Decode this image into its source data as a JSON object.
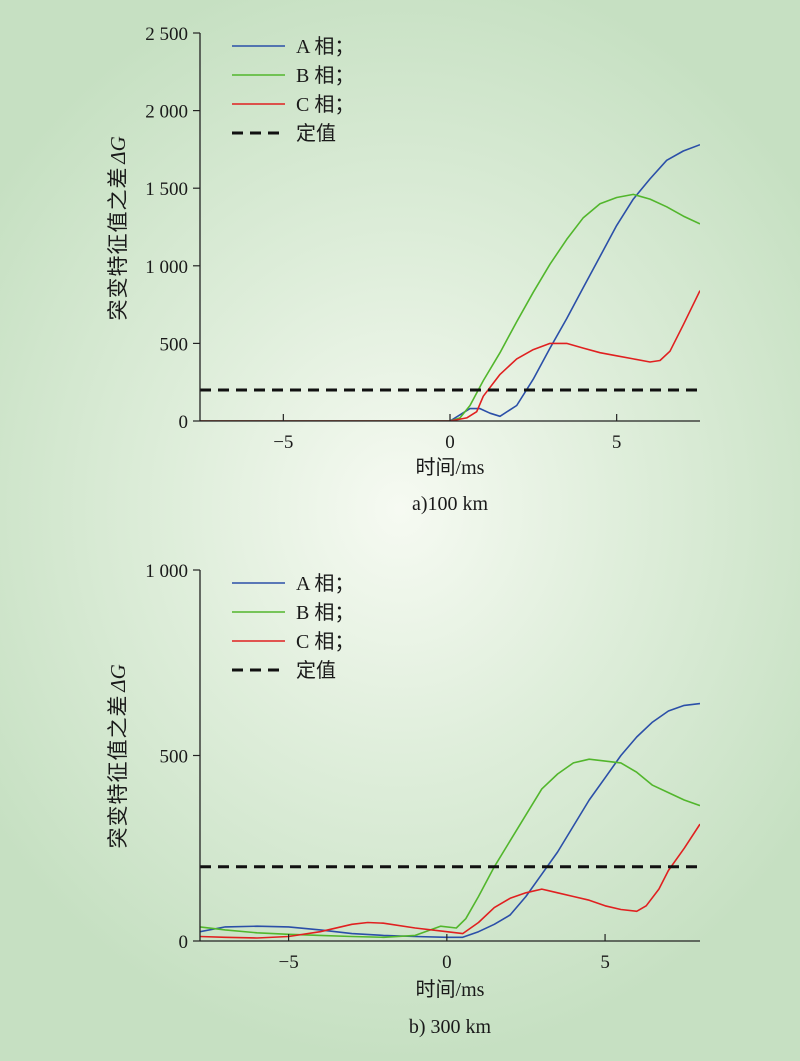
{
  "chart_data": [
    {
      "type": "line",
      "caption": "a)100 km",
      "xlabel": "时间/ms",
      "ylabel_chars": [
        "突",
        "变",
        "特",
        "征",
        "值",
        "之",
        "差"
      ],
      "ylabel_symbol": "ΔG",
      "xlim": [
        -7.5,
        7.5
      ],
      "ylim": [
        0,
        2500
      ],
      "xticks": [
        -5,
        0,
        5
      ],
      "xtick_labels": [
        "−5",
        "0",
        "5"
      ],
      "yticks": [
        0,
        500,
        1000,
        1500,
        2000,
        2500
      ],
      "ytick_labels": [
        "0",
        "500",
        "1 000",
        "1 500",
        "2 000",
        "2 500"
      ],
      "legend_position": "top-left",
      "grid": false,
      "series": [
        {
          "name": "A 相；",
          "color": "#2b4fa8",
          "dash": false,
          "x": [
            -7.5,
            -5,
            -2,
            0,
            0.3,
            0.6,
            0.9,
            1.2,
            1.5,
            2,
            2.5,
            3,
            3.5,
            4,
            4.5,
            5,
            5.5,
            6,
            6.5,
            7,
            7.5
          ],
          "y": [
            0,
            0,
            0,
            0,
            40,
            80,
            80,
            50,
            30,
            100,
            270,
            470,
            660,
            860,
            1060,
            1260,
            1430,
            1560,
            1680,
            1740,
            1780
          ]
        },
        {
          "name": "B 相；",
          "color": "#52b62c",
          "dash": false,
          "x": [
            -7.5,
            -5,
            -2,
            0,
            0.3,
            0.6,
            1,
            1.5,
            2,
            2.5,
            3,
            3.5,
            4,
            4.5,
            5,
            5.5,
            6,
            6.5,
            7,
            7.5
          ],
          "y": [
            0,
            0,
            0,
            0,
            20,
            100,
            260,
            440,
            640,
            830,
            1010,
            1170,
            1310,
            1400,
            1440,
            1460,
            1430,
            1380,
            1320,
            1270
          ]
        },
        {
          "name": "C 相；",
          "color": "#e02020",
          "dash": false,
          "x": [
            -7.5,
            -5,
            -2,
            0,
            0.5,
            0.8,
            1,
            1.5,
            2,
            2.5,
            3,
            3.5,
            4,
            4.5,
            5,
            5.5,
            6,
            6.3,
            6.6,
            7,
            7.5
          ],
          "y": [
            0,
            0,
            0,
            0,
            20,
            60,
            160,
            300,
            400,
            460,
            500,
            500,
            470,
            440,
            420,
            400,
            380,
            390,
            450,
            620,
            840
          ]
        },
        {
          "name": "定值",
          "color": "#111111",
          "dash": true,
          "x": [
            -7.5,
            7.5
          ],
          "y": [
            200,
            200
          ]
        }
      ]
    },
    {
      "type": "line",
      "caption": "b) 300 km",
      "xlabel": "时间/ms",
      "ylabel_chars": [
        "突",
        "变",
        "特",
        "征",
        "值",
        "之",
        "差"
      ],
      "ylabel_symbol": "ΔG",
      "xlim": [
        -7.8,
        8
      ],
      "ylim": [
        0,
        1000
      ],
      "xticks": [
        -5,
        0,
        5
      ],
      "xtick_labels": [
        "−5",
        "0",
        "5"
      ],
      "yticks": [
        0,
        500,
        1000
      ],
      "ytick_labels": [
        "0",
        "500",
        "1 000"
      ],
      "legend_position": "top-left",
      "grid": false,
      "series": [
        {
          "name": "A 相；",
          "color": "#2b4fa8",
          "dash": false,
          "x": [
            -7.8,
            -7,
            -6,
            -5,
            -4,
            -3,
            -2,
            -1,
            0,
            0.5,
            1,
            1.5,
            2,
            2.5,
            3,
            3.5,
            4,
            4.5,
            5,
            5.5,
            6,
            6.5,
            7,
            7.5,
            8
          ],
          "y": [
            25,
            38,
            40,
            38,
            30,
            20,
            15,
            12,
            10,
            10,
            25,
            45,
            70,
            120,
            180,
            240,
            310,
            380,
            440,
            500,
            550,
            590,
            620,
            635,
            640
          ]
        },
        {
          "name": "B 相；",
          "color": "#52b62c",
          "dash": false,
          "x": [
            -7.8,
            -7,
            -6,
            -5,
            -4,
            -3,
            -2,
            -1,
            -0.2,
            0.3,
            0.6,
            1,
            1.5,
            2,
            2.5,
            3,
            3.5,
            4,
            4.5,
            5,
            5.5,
            6,
            6.5,
            7,
            7.5,
            8
          ],
          "y": [
            38,
            30,
            22,
            18,
            15,
            12,
            10,
            15,
            40,
            35,
            60,
            120,
            200,
            270,
            340,
            410,
            450,
            480,
            490,
            485,
            480,
            455,
            420,
            400,
            380,
            365
          ]
        },
        {
          "name": "C 相；",
          "color": "#e02020",
          "dash": false,
          "x": [
            -7.8,
            -7,
            -6,
            -5,
            -4,
            -3,
            -2.5,
            -2,
            -1,
            0,
            0.5,
            1,
            1.5,
            2,
            2.5,
            3,
            3.5,
            4,
            4.5,
            5,
            5.5,
            6,
            6.3,
            6.7,
            7,
            7.5,
            8
          ],
          "y": [
            12,
            10,
            8,
            12,
            25,
            45,
            50,
            48,
            35,
            25,
            20,
            50,
            90,
            115,
            130,
            140,
            130,
            120,
            110,
            95,
            85,
            80,
            95,
            140,
            190,
            250,
            315
          ]
        },
        {
          "name": "定值",
          "color": "#111111",
          "dash": true,
          "x": [
            -7.8,
            8
          ],
          "y": [
            200,
            200
          ]
        }
      ]
    }
  ]
}
